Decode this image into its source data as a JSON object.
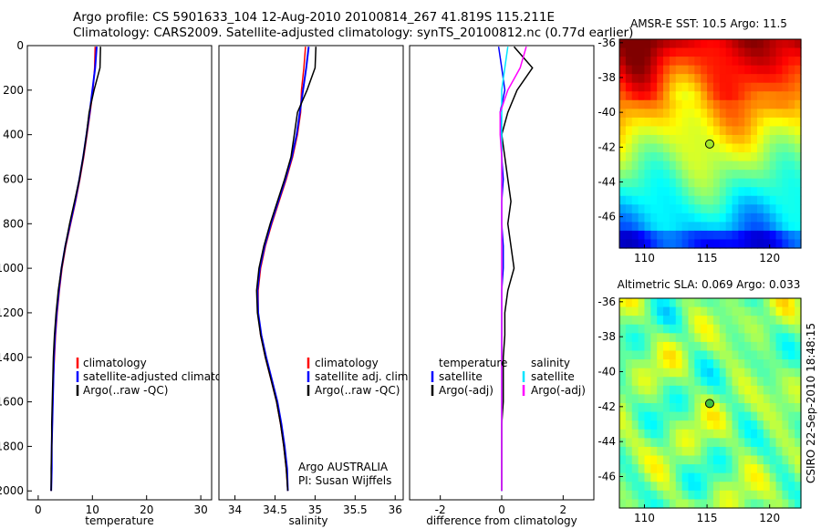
{
  "header": {
    "line1": "Argo profile: CS 5901633_104 12-Aug-2010 20100814_267 41.819S 115.211E",
    "line2": "Climatology: CARS2009. Satellite-adjusted climatology: synTS_20100812.nc (0.77d earlier)"
  },
  "colors": {
    "climatology": "#ff0000",
    "satellite": "#0000ff",
    "argo": "#000000",
    "sal_diff": "#ff00ff",
    "sal_sat": "#00e5ff"
  },
  "depth_axis": {
    "ylim": [
      0,
      2040
    ],
    "ticks": [
      "0",
      "200",
      "400",
      "600",
      "800",
      "1000",
      "1200",
      "1400",
      "1600",
      "1800",
      "2000"
    ]
  },
  "chart_data": [
    {
      "type": "line",
      "name": "temperature-profile",
      "xlabel": "temperature",
      "xlim": [
        -2,
        32
      ],
      "xticks": [
        "0",
        "10",
        "20",
        "30"
      ],
      "depth": [
        5,
        100,
        200,
        300,
        400,
        500,
        600,
        700,
        800,
        900,
        1000,
        1100,
        1200,
        1300,
        1400,
        1500,
        1600,
        1700,
        1800,
        1900,
        2000
      ],
      "series": [
        {
          "name": "climatology",
          "values": [
            10.5,
            10.4,
            10.1,
            9.6,
            9.0,
            8.4,
            7.7,
            6.9,
            6.0,
            5.1,
            4.4,
            3.9,
            3.5,
            3.2,
            3.0,
            2.8,
            2.7,
            2.6,
            2.5,
            2.5,
            2.4
          ]
        },
        {
          "name": "satellite-adjusted climatology",
          "values": [
            10.8,
            10.5,
            10.0,
            9.5,
            8.9,
            8.3,
            7.6,
            6.8,
            5.9,
            5.0,
            4.3,
            3.8,
            3.4,
            3.1,
            2.9,
            2.8,
            2.7,
            2.6,
            2.5,
            2.5,
            2.4
          ]
        },
        {
          "name": "Argo(..raw -QC)",
          "values": [
            11.5,
            11.4,
            10.3,
            9.4,
            8.9,
            8.3,
            7.6,
            6.7,
            5.8,
            5.0,
            4.3,
            3.7,
            3.3,
            3.0,
            2.8,
            2.7,
            2.6,
            2.5,
            2.5,
            2.4,
            2.4
          ]
        }
      ],
      "legend": [
        "climatology",
        "satellite-adjusted climatology",
        "Argo(..raw -QC)"
      ]
    },
    {
      "type": "line",
      "name": "salinity-profile",
      "xlabel": "salinity",
      "xlim": [
        33.8,
        36.1
      ],
      "xticks": [
        "34",
        "34.5",
        "35",
        "35.5",
        "36"
      ],
      "depth": [
        5,
        100,
        200,
        300,
        400,
        500,
        600,
        700,
        800,
        900,
        1000,
        1100,
        1200,
        1300,
        1400,
        1500,
        1600,
        1700,
        1800,
        1900,
        2000
      ],
      "series": [
        {
          "name": "climatology",
          "values": [
            34.88,
            34.86,
            34.83,
            34.82,
            34.78,
            34.72,
            34.64,
            34.55,
            34.46,
            34.38,
            34.32,
            34.29,
            34.29,
            34.32,
            34.38,
            34.45,
            34.52,
            34.57,
            34.61,
            34.64,
            34.66
          ]
        },
        {
          "name": "satellite adj. clim.",
          "values": [
            34.92,
            34.89,
            34.85,
            34.81,
            34.77,
            34.71,
            34.63,
            34.54,
            34.45,
            34.37,
            34.31,
            34.28,
            34.29,
            34.33,
            34.39,
            34.46,
            34.53,
            34.58,
            34.62,
            34.65,
            34.66
          ]
        },
        {
          "name": "Argo(..raw -QC)",
          "values": [
            35.01,
            35.0,
            34.9,
            34.78,
            34.74,
            34.7,
            34.62,
            34.53,
            34.44,
            34.36,
            34.3,
            34.27,
            34.28,
            34.32,
            34.38,
            34.45,
            34.52,
            34.57,
            34.61,
            34.64,
            34.66
          ]
        }
      ],
      "legend": [
        "climatology",
        "satellite adj. clim.",
        "Argo(..raw -QC)"
      ],
      "annotation": [
        "Argo AUSTRALIA",
        "PI: Susan Wijffels"
      ]
    },
    {
      "type": "line",
      "name": "difference-profile",
      "xlabel": "difference from climatology",
      "xlim": [
        -3,
        3
      ],
      "xticks": [
        "-2",
        "0",
        "2"
      ],
      "depth": [
        5,
        100,
        200,
        300,
        400,
        500,
        600,
        700,
        800,
        900,
        1000,
        1100,
        1200,
        1300,
        1400,
        1500,
        1600,
        1700,
        1800,
        1900,
        2000
      ],
      "series": [
        {
          "name": "temperature satellite",
          "values": [
            -0.1,
            0.0,
            0.1,
            -0.05,
            0.0,
            0.0,
            0.05,
            0.0,
            0.0,
            0.05,
            0.05,
            0.0,
            0.0,
            0.0,
            0.0,
            0.0,
            0.0,
            0.0,
            0.0,
            0.0,
            0.0
          ]
        },
        {
          "name": "temperature Argo(-adj)",
          "values": [
            0.4,
            1.0,
            0.5,
            0.2,
            0.0,
            0.1,
            0.2,
            0.3,
            0.2,
            0.3,
            0.4,
            0.2,
            0.1,
            0.1,
            0.05,
            0.05,
            0.05,
            0.0,
            0.0,
            0.0,
            0.0
          ]
        },
        {
          "name": "salinity satellite",
          "values": [
            0.2,
            0.1,
            0.0,
            0.0,
            0.0,
            0.0,
            0.0,
            0.0,
            0.0,
            0.0,
            0.0,
            0.0,
            0.0,
            0.0,
            0.0,
            0.0,
            0.0,
            0.0,
            0.0,
            0.0,
            0.0
          ]
        },
        {
          "name": "salinity Argo(-adj)",
          "values": [
            0.8,
            0.6,
            0.2,
            -0.05,
            -0.05,
            0.0,
            0.0,
            0.0,
            0.0,
            0.0,
            0.0,
            0.0,
            0.0,
            0.0,
            0.0,
            0.0,
            0.0,
            0.0,
            0.0,
            0.0,
            0.0
          ]
        }
      ],
      "legend_temp_title": "temperature",
      "legend_sal_title": "salinity",
      "legend": [
        "satellite",
        "Argo(-adj)",
        "satellite",
        "Argo(-adj)"
      ]
    }
  ],
  "maps": {
    "sst": {
      "title": "AMSR-E SST: 10.5 Argo: 11.5",
      "xticks": [
        "110",
        "115",
        "120"
      ],
      "yticks": [
        "-36",
        "-38",
        "-40",
        "-42",
        "-44",
        "-46"
      ],
      "lon_range": [
        108,
        122.5
      ],
      "lat_range": [
        -47.8,
        -35.8
      ],
      "point": {
        "lon": 115.211,
        "lat": -41.819
      }
    },
    "sla": {
      "title": "Altimetric SLA: 0.069 Argo: 0.033",
      "xticks": [
        "110",
        "115",
        "120"
      ],
      "yticks": [
        "-36",
        "-38",
        "-40",
        "-42",
        "-44",
        "-46"
      ],
      "lon_range": [
        108,
        122.5
      ],
      "lat_range": [
        -47.8,
        -35.8
      ],
      "point": {
        "lon": 115.211,
        "lat": -41.819
      }
    }
  },
  "footer": {
    "credit": "CSIRO 22-Sep-2010 18:48:15"
  }
}
